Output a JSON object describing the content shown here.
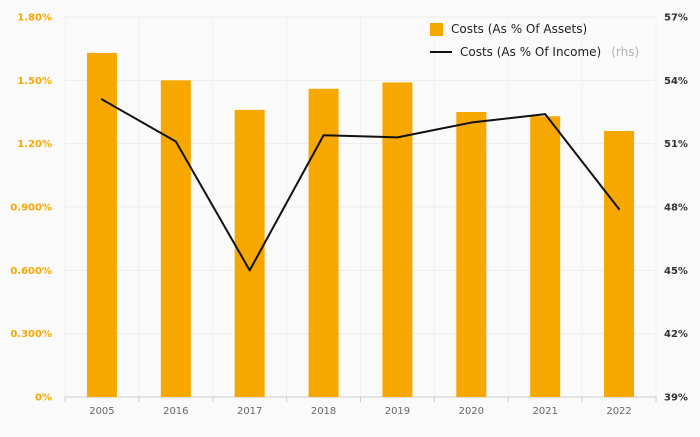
{
  "legend": {
    "series1_label": "Costs (As % Of Assets)",
    "series2_label": "Costs (As % Of Income)",
    "series2_suffix": "(rhs)"
  },
  "chart_data": {
    "type": "bar+line",
    "categories": [
      "2005",
      "2016",
      "2017",
      "2018",
      "2019",
      "2020",
      "2021",
      "2022"
    ],
    "series": [
      {
        "name": "Costs (As % Of Assets)",
        "type": "bar",
        "axis": "left",
        "values": [
          1.63,
          1.5,
          1.36,
          1.46,
          1.49,
          1.35,
          1.33,
          1.26
        ]
      },
      {
        "name": "Costs (As % Of Income)",
        "type": "line",
        "axis": "right",
        "values": [
          53.1,
          51.1,
          45.0,
          51.4,
          51.3,
          52.0,
          52.4,
          47.9
        ]
      }
    ],
    "left_axis": {
      "min": 0,
      "max": 1.8,
      "tick_values": [
        1.8,
        1.5,
        1.2,
        0.9,
        0.6,
        0.3,
        0
      ],
      "tick_labels": [
        "1.80%",
        "1.50%",
        "1.20%",
        "0.900%",
        "0.600%",
        "0.300%",
        "0%"
      ]
    },
    "right_axis": {
      "min": 39,
      "max": 57,
      "tick_values": [
        57,
        54,
        51,
        48,
        45,
        42,
        39
      ],
      "tick_labels": [
        "57%",
        "54%",
        "51%",
        "48%",
        "45%",
        "42%",
        "39%"
      ]
    },
    "legend_position": "top-right",
    "grid": "horizontal-light",
    "colors": {
      "bar": "#f6a800",
      "line": "#111111",
      "left_tick": "#f6a800",
      "right_tick": "#333333",
      "x_tick": "#666666",
      "grid": "#ececec",
      "baseline": "#cccccc",
      "vgrid": "#f1f1f1",
      "background": "#fafafa"
    }
  }
}
